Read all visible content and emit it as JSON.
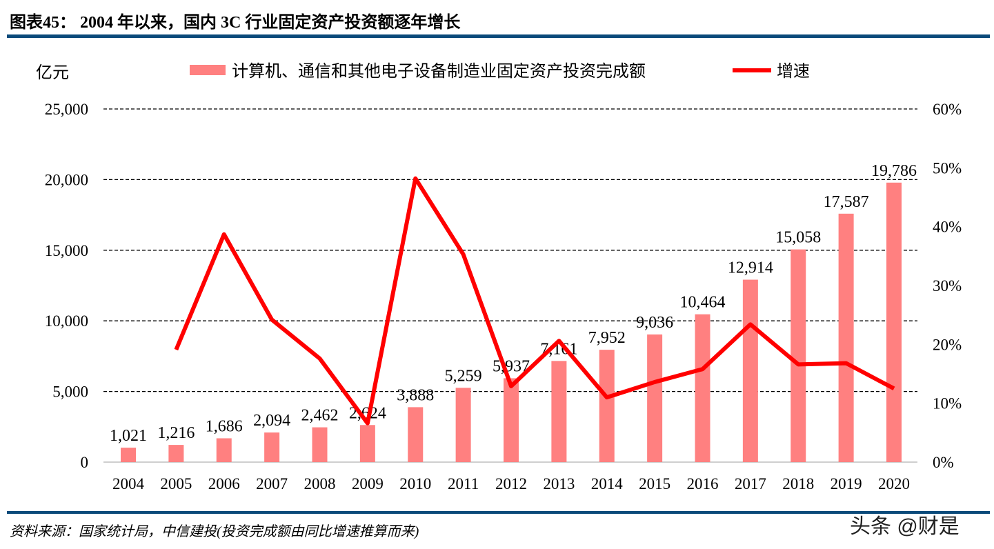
{
  "header": {
    "title": "图表45：  2004 年以来，国内 3C 行业固定资产投资额逐年增长"
  },
  "footer": {
    "source": "资料来源：国家统计局，中信建投(投资完成额由同比增速推算而来)",
    "watermark": "头条 @财是"
  },
  "chart_data": {
    "type": "bar+line",
    "title": "",
    "ylabel": "亿元",
    "categories": [
      "2004",
      "2005",
      "2006",
      "2007",
      "2008",
      "2009",
      "2010",
      "2011",
      "2012",
      "2013",
      "2014",
      "2015",
      "2016",
      "2017",
      "2018",
      "2019",
      "2020"
    ],
    "ylim": [
      0,
      25000
    ],
    "yticks": [
      "0",
      "5,000",
      "10,000",
      "15,000",
      "20,000",
      "25,000"
    ],
    "y2lim": [
      0,
      60
    ],
    "y2ticks": [
      "0%",
      "10%",
      "20%",
      "30%",
      "40%",
      "50%",
      "60%"
    ],
    "grid": true,
    "legend_position": "top",
    "series": [
      {
        "name": "计算机、通信和其他电子设备制造业固定资产投资完成额",
        "type": "bar",
        "axis": "left",
        "color": "#FF8080",
        "values": [
          1021,
          1216,
          1686,
          2094,
          2462,
          2624,
          3888,
          5259,
          5937,
          7161,
          7952,
          9036,
          10464,
          12914,
          15058,
          17587,
          19786
        ],
        "labels": [
          "1,021",
          "1,216",
          "1,686",
          "2,094",
          "2,462",
          "2,624",
          "3,888",
          "5,259",
          "5,937",
          "7,161",
          "7,952",
          "9,036",
          "10,464",
          "12,914",
          "15,058",
          "17,587",
          "19,786"
        ]
      },
      {
        "name": "增速",
        "type": "line",
        "axis": "right",
        "color": "#FF0000",
        "unit": "%",
        "values": [
          null,
          19.1,
          38.7,
          24.2,
          17.6,
          6.6,
          48.2,
          35.3,
          12.9,
          20.6,
          11.0,
          13.6,
          15.8,
          23.4,
          16.6,
          16.8,
          12.5
        ]
      }
    ]
  }
}
